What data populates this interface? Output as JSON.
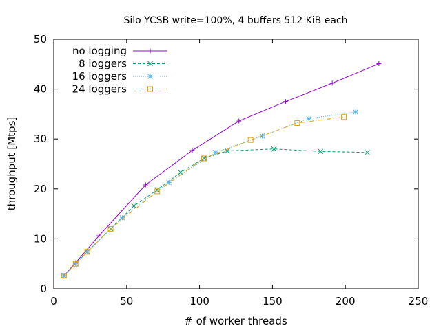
{
  "chart_data": {
    "type": "line",
    "title": "Silo YCSB write=100%, 4 buffers 512 KiB each",
    "xlabel": "# of worker threads",
    "ylabel": "throughput [Mtps]",
    "xlim": [
      0,
      250
    ],
    "ylim": [
      0,
      50
    ],
    "xticks": [
      0,
      50,
      100,
      150,
      200,
      250
    ],
    "yticks": [
      0,
      10,
      20,
      30,
      40,
      50
    ],
    "grid": false,
    "legend_position": "top-left",
    "series": [
      {
        "name": "no logging",
        "color": "#9400d3",
        "marker": "plus",
        "dash": "solid",
        "points": [
          [
            7,
            2.6
          ],
          [
            15,
            5.2
          ],
          [
            31,
            10.6
          ],
          [
            63,
            20.8
          ],
          [
            95,
            27.7
          ],
          [
            127,
            33.6
          ],
          [
            159,
            37.5
          ],
          [
            191,
            41.2
          ],
          [
            223,
            45.1
          ]
        ]
      },
      {
        "name": "8 loggers",
        "color": "#009e73",
        "marker": "x",
        "dash": "dashed",
        "points": [
          [
            7,
            2.6
          ],
          [
            15,
            5.0
          ],
          [
            23,
            7.4
          ],
          [
            39,
            12.0
          ],
          [
            55,
            16.6
          ],
          [
            71,
            19.8
          ],
          [
            87,
            23.3
          ],
          [
            103,
            26.1
          ],
          [
            119,
            27.6
          ],
          [
            151,
            28.0
          ],
          [
            183,
            27.5
          ],
          [
            215,
            27.3
          ]
        ]
      },
      {
        "name": "16 loggers",
        "color": "#56b4e9",
        "marker": "star",
        "dash": "dotted",
        "points": [
          [
            7,
            2.6
          ],
          [
            15,
            5.0
          ],
          [
            23,
            7.4
          ],
          [
            47,
            14.2
          ],
          [
            79,
            21.3
          ],
          [
            111,
            27.3
          ],
          [
            143,
            30.6
          ],
          [
            175,
            34.1
          ],
          [
            207,
            35.4
          ]
        ]
      },
      {
        "name": "24 loggers",
        "color": "#e69f00",
        "marker": "square",
        "dash": "dashdot",
        "points": [
          [
            7,
            2.6
          ],
          [
            15,
            5.0
          ],
          [
            23,
            7.4
          ],
          [
            39,
            12.0
          ],
          [
            71,
            19.5
          ],
          [
            103,
            26.1
          ],
          [
            135,
            29.8
          ],
          [
            167,
            33.2
          ],
          [
            199,
            34.4
          ]
        ]
      }
    ]
  }
}
